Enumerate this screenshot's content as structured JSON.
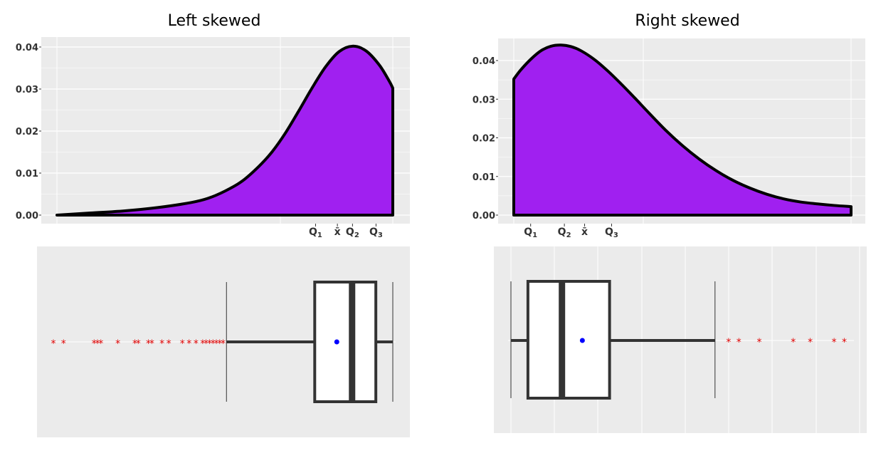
{
  "colors": {
    "panel_bg": "#ebebeb",
    "grid": "#ffffff",
    "density_fill": "#a020f0",
    "density_line": "#000000",
    "box_line": "#333333",
    "mean_point": "#0000ff",
    "outlier": "#ff0000"
  },
  "chart_data": [
    {
      "name": "left-skewed",
      "type": "area",
      "title": "Left skewed",
      "xlim": [
        0,
        100
      ],
      "ylim": [
        0,
        0.04
      ],
      "yticks": [
        "0.00",
        "0.01",
        "0.02",
        "0.03",
        "0.04"
      ],
      "x": [
        0,
        10,
        20,
        30,
        40,
        45,
        50,
        55,
        60,
        64,
        68,
        72,
        76,
        80,
        84,
        88,
        92,
        96,
        99,
        100
      ],
      "y": [
        0.0,
        0.0005,
        0.001,
        0.0018,
        0.003,
        0.004,
        0.0057,
        0.008,
        0.0115,
        0.015,
        0.0195,
        0.0248,
        0.0303,
        0.0353,
        0.0389,
        0.0402,
        0.0391,
        0.0357,
        0.0318,
        0.0302
      ],
      "quantile_marks": [
        {
          "sym": "Q",
          "sub": "1",
          "x": 77
        },
        {
          "sym": "x̄",
          "sub": "",
          "x": 83.5
        },
        {
          "sym": "Q",
          "sub": "2",
          "x": 88
        },
        {
          "sym": "Q",
          "sub": "3",
          "x": 95
        }
      ],
      "boxplot": {
        "q1": 77,
        "median": 88,
        "q3": 95,
        "mean": 83.5,
        "whisker_low": 51,
        "whisker_high": 100,
        "outliers": [
          0,
          3,
          12,
          13,
          14,
          19,
          24,
          25,
          28,
          29,
          32,
          34,
          38,
          40,
          42,
          44,
          45,
          46,
          47,
          48,
          49,
          50
        ]
      }
    },
    {
      "name": "right-skewed",
      "type": "area",
      "title": "Right skewed",
      "xlim": [
        0,
        100
      ],
      "ylim": [
        0,
        0.044
      ],
      "yticks": [
        "0.00",
        "0.01",
        "0.02",
        "0.03",
        "0.04"
      ],
      "x": [
        0,
        2,
        5,
        8,
        11,
        14,
        17,
        20,
        24,
        28,
        32,
        36,
        40,
        45,
        50,
        55,
        60,
        65,
        70,
        75,
        80,
        85,
        90,
        95,
        100
      ],
      "y": [
        0.0352,
        0.0375,
        0.0403,
        0.0425,
        0.0437,
        0.044,
        0.0436,
        0.0425,
        0.0402,
        0.0372,
        0.0338,
        0.0302,
        0.0265,
        0.022,
        0.018,
        0.0145,
        0.0115,
        0.009,
        0.007,
        0.0054,
        0.0042,
        0.0034,
        0.0029,
        0.0025,
        0.0022
      ],
      "quantile_marks": [
        {
          "sym": "Q",
          "sub": "1",
          "x": 5
        },
        {
          "sym": "Q",
          "sub": "2",
          "x": 15
        },
        {
          "sym": "x̄",
          "sub": "",
          "x": 21
        },
        {
          "sym": "Q",
          "sub": "3",
          "x": 29
        }
      ],
      "boxplot": {
        "q1": 5,
        "median": 15,
        "q3": 29,
        "mean": 21,
        "whisker_low": 0,
        "whisker_high": 60,
        "outliers": [
          64,
          67,
          73,
          83,
          88,
          95,
          98
        ]
      }
    }
  ]
}
